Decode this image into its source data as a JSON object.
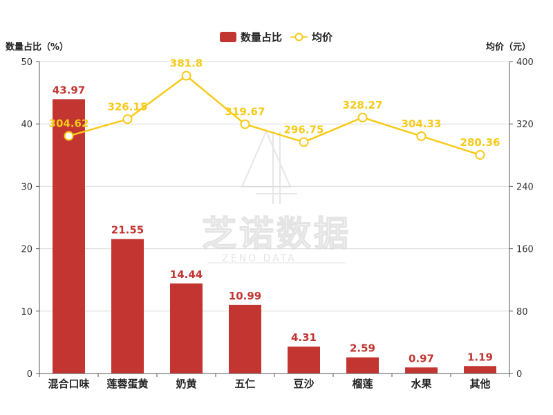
{
  "chart_data": {
    "type": "bar+line",
    "categories": [
      "混合口味",
      "莲蓉蛋黄",
      "奶黄",
      "五仁",
      "豆沙",
      "榴莲",
      "水果",
      "其他"
    ],
    "series": [
      {
        "name": "数量占比",
        "type": "bar",
        "axis": "left",
        "values": [
          43.97,
          21.55,
          14.44,
          10.99,
          4.31,
          2.59,
          0.97,
          1.19
        ],
        "value_labels": [
          "43.97",
          "21.55",
          "14.44",
          "10.99",
          "4.31",
          "2.59",
          "0.97",
          "1.19"
        ]
      },
      {
        "name": "均价",
        "type": "line",
        "axis": "right",
        "values": [
          304.62,
          326.15,
          381.8,
          319.67,
          296.75,
          328.27,
          304.33,
          280.36
        ],
        "value_labels": [
          "304.62",
          "326.15",
          "381.8",
          "319.67",
          "296.75",
          "328.27",
          "304.33",
          "280.36"
        ]
      }
    ],
    "left_axis": {
      "label": "数量占比（%）",
      "min": 0,
      "max": 50,
      "ticks": [
        "0",
        "10",
        "20",
        "30",
        "40",
        "50"
      ]
    },
    "right_axis": {
      "label": "均价（元）",
      "min": 0,
      "max": 400,
      "ticks": [
        "0",
        "80",
        "160",
        "240",
        "320",
        "400"
      ]
    },
    "grid": true,
    "legend_position": "top-center",
    "colors": {
      "bar": "#c23531",
      "line": "#f7ca18",
      "grid": "#d9d9d9",
      "axis": "#555555"
    }
  },
  "watermark": {
    "text": "芝诺数据",
    "subtext": "ZENO DATA"
  }
}
